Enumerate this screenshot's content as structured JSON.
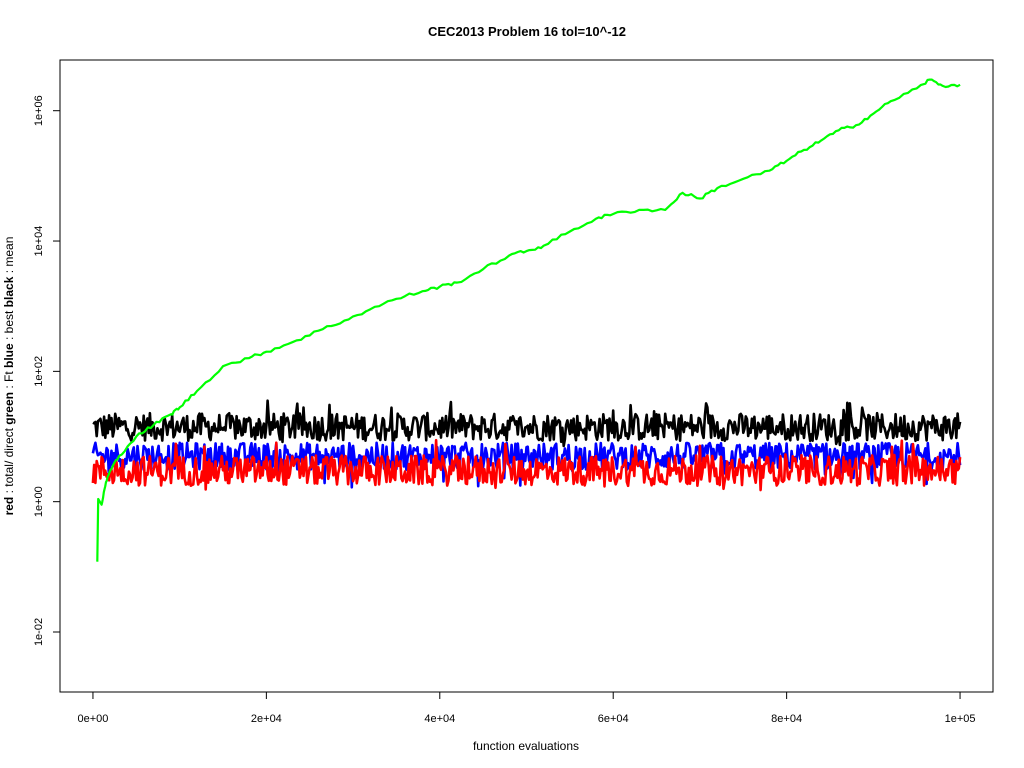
{
  "chart_data": {
    "type": "line",
    "title": "CEC2013 Problem  16  tol=10^-12",
    "xlabel": "function evaluations",
    "ylabel_parts": [
      {
        "text": "red",
        "bold": true
      },
      {
        "text": " : total/ direct ",
        "bold": false
      },
      {
        "text": "green",
        "bold": true
      },
      {
        "text": " : Ft ",
        "bold": false
      },
      {
        "text": "blue",
        "bold": true
      },
      {
        "text": " : best ",
        "bold": false
      },
      {
        "text": "black",
        "bold": true
      },
      {
        "text": " : mean",
        "bold": false
      }
    ],
    "x_ticks": [
      "0e+00",
      "2e+04",
      "4e+04",
      "6e+04",
      "8e+04",
      "1e+05"
    ],
    "x_tick_values": [
      0,
      20000,
      40000,
      60000,
      80000,
      100000
    ],
    "y_ticks": [
      "1e-02",
      "1e+00",
      "1e+02",
      "1e+04",
      "1e+06"
    ],
    "y_tick_values": [
      0.01,
      1,
      100,
      10000,
      1000000
    ],
    "y_scale": "log",
    "xlim": [
      -3800,
      103800
    ],
    "ylim": [
      0.0012,
      6000000
    ],
    "grid": false,
    "series": [
      {
        "color": "#00ff00",
        "x": [
          500,
          600,
          1000,
          1500,
          2000,
          3000,
          5000,
          7000,
          9000,
          10000,
          12000,
          15000,
          18000,
          20000,
          23000,
          26000,
          29000,
          32000,
          35000,
          38000,
          40000,
          42000,
          45000,
          48000,
          50000,
          52000,
          55000,
          58000,
          60000,
          63000,
          66000,
          68000,
          70000,
          72000,
          75000,
          78000,
          80000,
          82000,
          84000,
          86000,
          88000,
          90000,
          92000,
          95000,
          96500,
          98000,
          100000
        ],
        "y": [
          0.12,
          1.1,
          0.9,
          2.0,
          3.0,
          5.0,
          10,
          15,
          22,
          28,
          50,
          120,
          160,
          200,
          280,
          420,
          600,
          900,
          1300,
          1700,
          2000,
          2300,
          3700,
          6000,
          7000,
          8500,
          14000,
          22000,
          26000,
          30000,
          30000,
          55000,
          45000,
          65000,
          90000,
          120000,
          170000,
          250000,
          350000,
          500000,
          600000,
          900000,
          1400000,
          2200000,
          3000000,
          2400000,
          2500000
        ]
      },
      {
        "color": "#000000",
        "x_start": 0,
        "x_end": 100000,
        "count": 700,
        "y_mean": 14,
        "y_range": [
          7,
          36
        ]
      },
      {
        "color": "#0000ff",
        "x_start": 0,
        "x_end": 100000,
        "count": 700,
        "y_mean": 5,
        "y_range": [
          1.6,
          8
        ]
      },
      {
        "color": "#ff0000",
        "x_start": 0,
        "x_end": 100000,
        "count": 700,
        "y_mean": 3,
        "y_range": [
          1.5,
          9
        ]
      }
    ]
  }
}
